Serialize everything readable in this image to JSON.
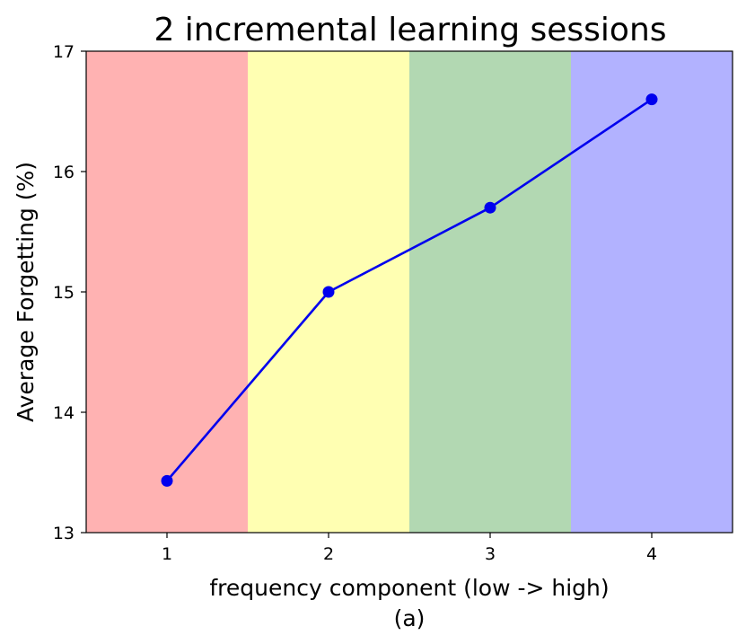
{
  "chart_data": {
    "type": "line",
    "title": "2 incremental learning sessions",
    "xlabel": "frequency component (low -> high)",
    "caption": "(a)",
    "ylabel": "Average Forgetting (%)",
    "x": [
      1,
      2,
      3,
      4
    ],
    "series": [
      {
        "values": [
          13.43,
          15.0,
          15.7,
          16.6
        ],
        "color": "#0000ee",
        "marker": "circle"
      }
    ],
    "xlim": [
      0.5,
      4.5
    ],
    "ylim": [
      13,
      17
    ],
    "xticks": [
      1,
      2,
      3,
      4
    ],
    "yticks": [
      13,
      14,
      15,
      16,
      17
    ],
    "grid": false,
    "bands": [
      {
        "from": 0.5,
        "to": 1.5,
        "color": "#ffb2b2"
      },
      {
        "from": 1.5,
        "to": 2.5,
        "color": "#ffffb2"
      },
      {
        "from": 2.5,
        "to": 3.5,
        "color": "#b2d8b2"
      },
      {
        "from": 3.5,
        "to": 4.5,
        "color": "#b2b2ff"
      }
    ]
  }
}
